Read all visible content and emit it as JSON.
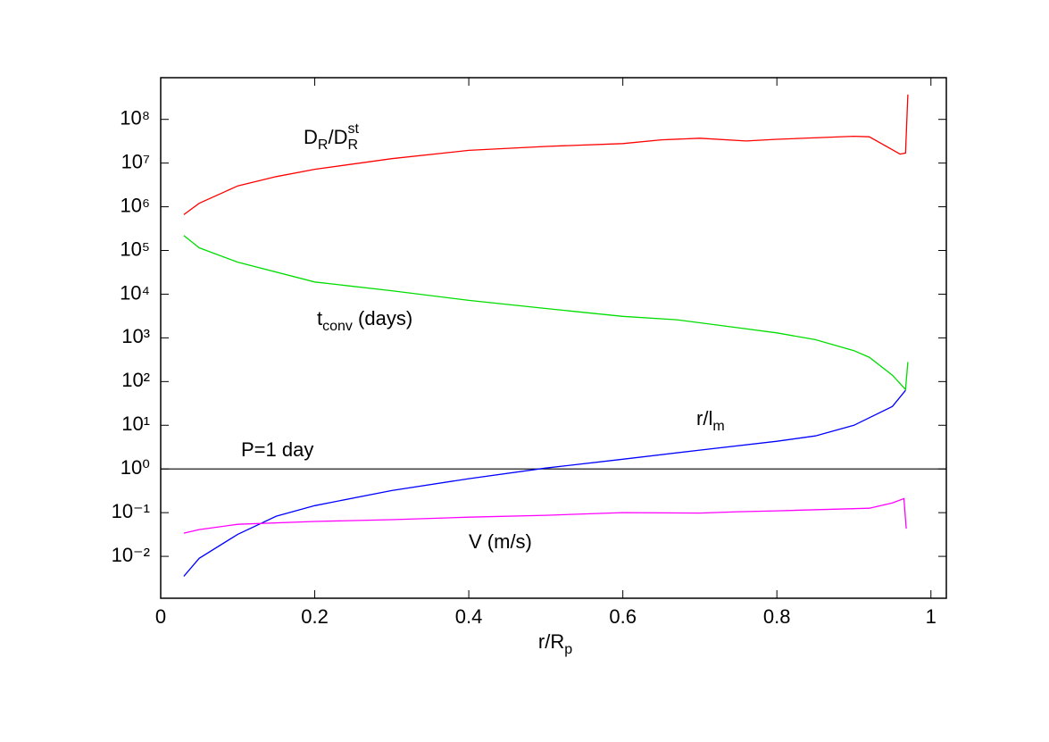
{
  "chart_data": {
    "type": "line",
    "x_label": [
      {
        "text": "r/R"
      },
      {
        "text": "p",
        "shift": "sub"
      }
    ],
    "xlim": [
      0,
      1.02
    ],
    "xticks": [
      0,
      0.2,
      0.4,
      0.6,
      0.8,
      1
    ],
    "ylim": [
      0.0011,
      900000000
    ],
    "log_y": true,
    "yticks": [
      {
        "value": 0.01,
        "label": "10⁻²"
      },
      {
        "value": 0.1,
        "label": "10⁻¹"
      },
      {
        "value": 1,
        "label": "10⁰"
      },
      {
        "value": 10,
        "label": "10¹"
      },
      {
        "value": 100,
        "label": "10²"
      },
      {
        "value": 1000,
        "label": "10³"
      },
      {
        "value": 10000,
        "label": "10⁴"
      },
      {
        "value": 100000,
        "label": "10⁵"
      },
      {
        "value": 1000000,
        "label": "10⁶"
      },
      {
        "value": 10000000,
        "label": "10⁷"
      },
      {
        "value": 100000000,
        "label": "10⁸"
      }
    ],
    "hline": {
      "value": 1,
      "color": "#000000",
      "name": [
        {
          "text": "P=1 day"
        }
      ]
    },
    "series": [
      {
        "name": [
          {
            "text": "D"
          },
          {
            "text": "R",
            "shift": "sub"
          },
          {
            "text": "/D"
          },
          {
            "text": "st",
            "shift": "sup"
          },
          {
            "text": "R",
            "shift": "sub"
          }
        ],
        "color": "#ff0000",
        "x": [
          0.03,
          0.05,
          0.1,
          0.15,
          0.2,
          0.3,
          0.4,
          0.5,
          0.6,
          0.65,
          0.7,
          0.76,
          0.8,
          0.9,
          0.92,
          0.96,
          0.967,
          0.97
        ],
        "values": [
          660000,
          1200000,
          3000000,
          4900000,
          7200000,
          12600000,
          19500000,
          24000000,
          28000000,
          34000000,
          37000000,
          32000000,
          35000000,
          41000000,
          40000000,
          16000000,
          17000000,
          370000000
        ]
      },
      {
        "name": [
          {
            "text": "t"
          },
          {
            "text": "conv",
            "shift": "sub"
          },
          {
            "text": " (days)"
          }
        ],
        "color": "#00dd00",
        "x": [
          0.03,
          0.05,
          0.1,
          0.2,
          0.3,
          0.4,
          0.5,
          0.6,
          0.67,
          0.75,
          0.8,
          0.85,
          0.9,
          0.92,
          0.95,
          0.967,
          0.97
        ],
        "values": [
          220000,
          115000,
          54000,
          19000,
          12000,
          7200,
          4700,
          3100,
          2600,
          1700,
          1300,
          910,
          510,
          360,
          140,
          66,
          280
        ]
      },
      {
        "name": [
          {
            "text": "r/l"
          },
          {
            "text": "m",
            "shift": "sub"
          }
        ],
        "color": "#0000ff",
        "x": [
          0.03,
          0.05,
          0.1,
          0.15,
          0.2,
          0.3,
          0.4,
          0.5,
          0.6,
          0.7,
          0.8,
          0.85,
          0.9,
          0.95,
          0.967
        ],
        "values": [
          0.0035,
          0.009,
          0.032,
          0.083,
          0.145,
          0.32,
          0.6,
          1.05,
          1.67,
          2.7,
          4.3,
          5.7,
          10,
          27,
          63
        ]
      },
      {
        "name": [
          {
            "text": "V (m/s)"
          }
        ],
        "color": "#ff00ff",
        "x": [
          0.03,
          0.05,
          0.1,
          0.2,
          0.3,
          0.4,
          0.5,
          0.6,
          0.7,
          0.75,
          0.8,
          0.92,
          0.95,
          0.965,
          0.968
        ],
        "values": [
          0.034,
          0.041,
          0.054,
          0.063,
          0.069,
          0.079,
          0.087,
          0.1,
          0.098,
          0.105,
          0.11,
          0.126,
          0.167,
          0.21,
          0.043
        ]
      }
    ]
  }
}
